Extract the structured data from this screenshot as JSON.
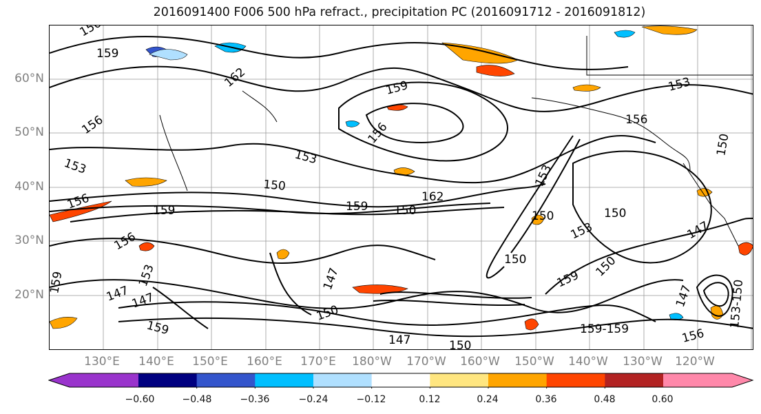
{
  "title": "2016091400 F006 500 hPa refract., precipitation PC (2016091712 - 2016091812)",
  "lat_labels": [
    "60°N",
    "50°N",
    "40°N",
    "30°N",
    "20°N"
  ],
  "lon_labels": [
    "130°E",
    "140°E",
    "150°E",
    "160°E",
    "170°E",
    "180°W",
    "170°W",
    "160°W",
    "150°W",
    "140°W",
    "130°W",
    "120°W"
  ],
  "contour_labels": [
    "156",
    "159",
    "162",
    "159",
    "153",
    "156",
    "156",
    "153",
    "153",
    "150",
    "150",
    "159",
    "162",
    "156",
    "159",
    "150",
    "153",
    "150",
    "153",
    "150",
    "147",
    "159",
    "147",
    "150",
    "147",
    "159",
    "156",
    "150",
    "153",
    "147",
    "159",
    "156",
    "147",
    "150",
    "150",
    "156",
    "159-159",
    "147",
    "153-150"
  ],
  "colorbar": {
    "tick_labels": [
      "−0.60",
      "−0.48",
      "−0.36",
      "−0.24",
      "−0.12",
      "0.12",
      "0.24",
      "0.36",
      "0.48",
      "0.60"
    ],
    "colors": [
      "#9933cc",
      "#000080",
      "#3355cc",
      "#00bfff",
      "#b0e0ff",
      "#ffffff",
      "#ffe680",
      "#ffa500",
      "#ff4500",
      "#b22222",
      "#ff88aa"
    ]
  }
}
